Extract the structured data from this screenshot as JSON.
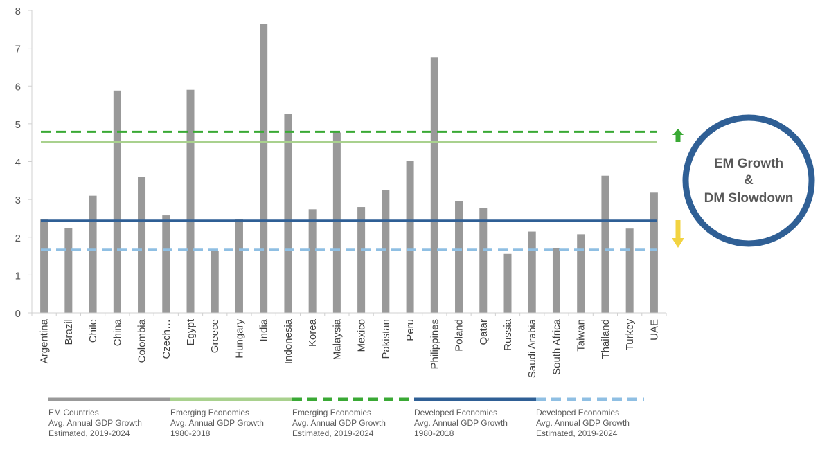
{
  "chart_data": {
    "type": "bar",
    "title": "",
    "xlabel": "",
    "ylabel": "",
    "ylim": [
      0,
      8
    ],
    "yticks": [
      0,
      1,
      2,
      3,
      4,
      5,
      6,
      7,
      8
    ],
    "grid": false,
    "categories": [
      "Argentina",
      "Brazil",
      "Chile",
      "China",
      "Colombia",
      "Czech…",
      "Egypt",
      "Greece",
      "Hungary",
      "India",
      "Indonesia",
      "Korea",
      "Malaysia",
      "Mexico",
      "Pakistan",
      "Peru",
      "Philippines",
      "Poland",
      "Qatar",
      "Russia",
      "Saudi Arabia",
      "South Africa",
      "Taiwan",
      "Thailand",
      "Turkey",
      "UAE"
    ],
    "series": [
      {
        "name": "EM Countries Avg. Annual GDP Growth Estimated, 2019-2024",
        "color": "#999999",
        "values": [
          2.47,
          2.25,
          3.1,
          5.88,
          3.6,
          2.58,
          5.9,
          1.64,
          2.48,
          7.65,
          5.27,
          2.74,
          4.77,
          2.8,
          3.25,
          4.02,
          6.75,
          2.95,
          2.78,
          1.56,
          2.15,
          1.72,
          2.08,
          3.63,
          2.23,
          3.18
        ]
      }
    ],
    "reference_lines": [
      {
        "name": "Emerging Economies Avg. Annual GDP Growth 1980-2018",
        "value": 4.53,
        "color": "#a9d18e",
        "style": "solid"
      },
      {
        "name": "Emerging Economies Avg. Annual GDP Growth Estimated, 2019-2024",
        "value": 4.79,
        "color": "#3aa935",
        "style": "dashed"
      },
      {
        "name": "Developed Economies Avg. Annual GDP Growth 1980-2018",
        "value": 2.44,
        "color": "#2f5f95",
        "style": "solid"
      },
      {
        "name": "Developed Economies Avg. Annual GDP Growth Estimated, 2019-2024",
        "value": 1.67,
        "color": "#8fbfe3",
        "style": "dashed"
      }
    ],
    "legend_position": "bottom",
    "legend": [
      {
        "lines": [
          "EM Countries",
          "Avg. Annual GDP Growth",
          "Estimated, 2019-2024"
        ],
        "color": "#999999",
        "style": "solid"
      },
      {
        "lines": [
          "Emerging Economies",
          "Avg. Annual GDP Growth",
          "1980-2018"
        ],
        "color": "#a9d18e",
        "style": "solid"
      },
      {
        "lines": [
          "Emerging Economies",
          "Avg. Annual GDP Growth",
          "Estimated, 2019-2024"
        ],
        "color": "#3aa935",
        "style": "dashed"
      },
      {
        "lines": [
          "Developed Economies",
          "Avg. Annual GDP Growth",
          "1980-2018"
        ],
        "color": "#2f5f95",
        "style": "solid"
      },
      {
        "lines": [
          "Developed Economies",
          "Avg. Annual GDP Growth",
          "Estimated, 2019-2024"
        ],
        "color": "#8fbfe3",
        "style": "dashed"
      }
    ],
    "arrows": [
      {
        "direction": "up",
        "color": "#3aa935",
        "icon": "arrow-up-icon"
      },
      {
        "direction": "down",
        "color": "#f2d341",
        "icon": "arrow-down-icon"
      }
    ],
    "badge": {
      "lines": [
        "EM Growth",
        "&",
        "DM Slowdown"
      ],
      "ring_color": "#2f5f95",
      "text_color": "#595959"
    }
  }
}
